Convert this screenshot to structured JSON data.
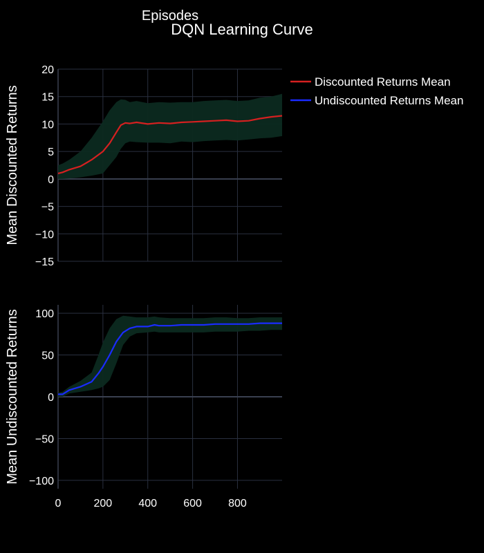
{
  "chart_data": {
    "type": "line",
    "title": "DQN Learning Curve",
    "xlabel": "Episodes",
    "colors": {
      "background": "#000000",
      "grid": "#2a3040",
      "zeroline": "#3a4050",
      "band": "#0c2a20",
      "discounted": "#d62020",
      "undiscounted": "#1a2bff",
      "text": "#ffffff"
    },
    "legend": {
      "placement": "top-right",
      "items": [
        "Discounted Returns Mean",
        "Undiscounted Returns Mean"
      ]
    },
    "panels": [
      {
        "name": "discounted",
        "ylabel": "Mean Discounted Returns",
        "ylim": [
          -15,
          20
        ],
        "yticks": [
          -15,
          -10,
          -5,
          0,
          5,
          10,
          15,
          20
        ],
        "ytick_labels": [
          "−15",
          "−10",
          "−5",
          "0",
          "5",
          "10",
          "15",
          "20"
        ],
        "xlim": [
          0,
          999
        ],
        "xticks": [
          0,
          200,
          400,
          600,
          800
        ],
        "series": {
          "name": "Discounted Returns Mean",
          "x": [
            0,
            20,
            50,
            100,
            150,
            200,
            230,
            260,
            280,
            300,
            320,
            350,
            400,
            450,
            500,
            550,
            600,
            650,
            700,
            750,
            800,
            850,
            900,
            950,
            999
          ],
          "mean": [
            1.0,
            1.2,
            1.7,
            2.3,
            3.5,
            5.0,
            6.5,
            8.5,
            9.8,
            10.2,
            10.1,
            10.3,
            10.0,
            10.2,
            10.1,
            10.3,
            10.4,
            10.5,
            10.6,
            10.7,
            10.5,
            10.6,
            11.0,
            11.3,
            11.5
          ],
          "upper": [
            2.5,
            2.8,
            3.5,
            5.0,
            7.5,
            10.5,
            12.5,
            14.0,
            14.5,
            14.4,
            14.0,
            14.2,
            13.8,
            14.0,
            13.9,
            14.0,
            14.0,
            14.2,
            14.3,
            14.4,
            14.2,
            14.3,
            14.8,
            15.0,
            15.5
          ],
          "lower": [
            0.0,
            0.0,
            0.1,
            0.3,
            0.6,
            1.0,
            2.5,
            4.0,
            5.5,
            6.5,
            6.8,
            6.7,
            6.6,
            6.6,
            6.5,
            6.8,
            6.7,
            6.9,
            7.0,
            7.1,
            7.0,
            7.2,
            7.4,
            7.5,
            7.8
          ]
        }
      },
      {
        "name": "undiscounted",
        "ylabel": "Mean Undiscounted Returns",
        "ylim": [
          -110,
          110
        ],
        "yticks": [
          -100,
          -50,
          0,
          50,
          100
        ],
        "ytick_labels": [
          "−100",
          "−50",
          "0",
          "50",
          "100"
        ],
        "xlim": [
          0,
          999
        ],
        "xticks": [
          0,
          200,
          400,
          600,
          800
        ],
        "xtick_labels": [
          "0",
          "200",
          "400",
          "600",
          "800"
        ],
        "series": {
          "name": "Undiscounted Returns Mean",
          "x": [
            0,
            20,
            50,
            100,
            150,
            180,
            200,
            230,
            260,
            290,
            320,
            350,
            400,
            430,
            450,
            500,
            550,
            600,
            650,
            700,
            750,
            800,
            850,
            900,
            950,
            999
          ],
          "mean": [
            3,
            3,
            8,
            12,
            18,
            28,
            36,
            50,
            66,
            77,
            82,
            84,
            84,
            86,
            85,
            85,
            86,
            86,
            86,
            87,
            87,
            87,
            87,
            88,
            88,
            88
          ],
          "upper": [
            5,
            6,
            12,
            19,
            29,
            50,
            65,
            82,
            93,
            97,
            96,
            95,
            95,
            96,
            95,
            94,
            94,
            94,
            94,
            95,
            95,
            94,
            94,
            95,
            95,
            95
          ],
          "lower": [
            0,
            0,
            4,
            6,
            8,
            10,
            12,
            20,
            40,
            62,
            72,
            76,
            77,
            78,
            77,
            77,
            77,
            77,
            77,
            78,
            78,
            78,
            79,
            79,
            80,
            80
          ]
        }
      }
    ]
  }
}
